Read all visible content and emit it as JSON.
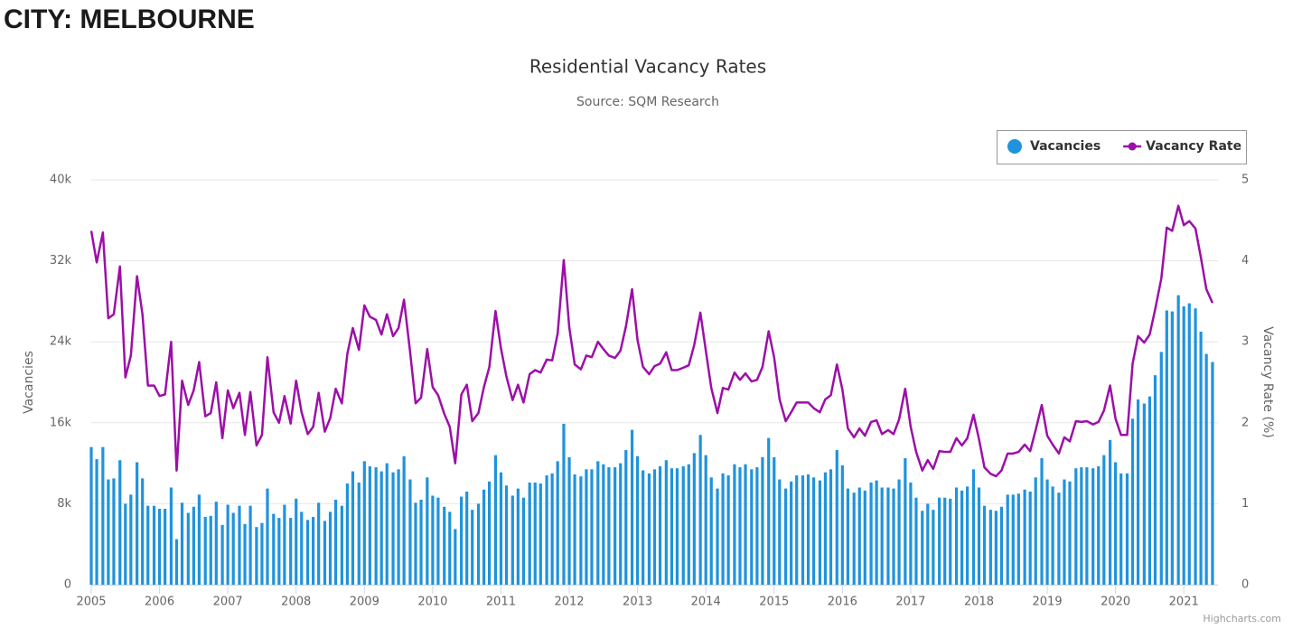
{
  "page_title": "CITY: MELBOURNE",
  "chart_data": {
    "type": "combo",
    "title": "Residential Vacancy Rates",
    "subtitle": "Source: SQM Research",
    "y_label": "Vacancies",
    "y2_label": "Vacancy Rate (%)",
    "credits": "Highcharts.com",
    "legend": "top-right",
    "grid": true,
    "xlim": [
      2005,
      2021.5
    ],
    "xticks": [
      2005,
      2006,
      2007,
      2008,
      2009,
      2010,
      2011,
      2012,
      2013,
      2014,
      2015,
      2016,
      2017,
      2018,
      2019,
      2020,
      2021
    ],
    "ylim": [
      0,
      40000
    ],
    "yticks": [
      0,
      {
        "value": 8000,
        "label": "8k"
      },
      {
        "value": 16000,
        "label": "16k"
      },
      {
        "value": 24000,
        "label": "24k"
      },
      {
        "value": 32000,
        "label": "32k"
      },
      {
        "value": 40000,
        "label": "40k"
      }
    ],
    "y2lim": [
      0,
      5
    ],
    "y2ticks": [
      0,
      1,
      2,
      3,
      4,
      5
    ],
    "x": [
      2005,
      2005.08,
      2005.17,
      2005.25,
      2005.33,
      2005.42,
      2005.5,
      2005.58,
      2005.67,
      2005.75,
      2005.83,
      2005.92,
      2006,
      2006.08,
      2006.17,
      2006.25,
      2006.33,
      2006.42,
      2006.5,
      2006.58,
      2006.67,
      2006.75,
      2006.83,
      2006.92,
      2007,
      2007.08,
      2007.17,
      2007.25,
      2007.33,
      2007.42,
      2007.5,
      2007.58,
      2007.67,
      2007.75,
      2007.83,
      2007.92,
      2008,
      2008.08,
      2008.17,
      2008.25,
      2008.33,
      2008.42,
      2008.5,
      2008.58,
      2008.67,
      2008.75,
      2008.83,
      2008.92,
      2009,
      2009.08,
      2009.17,
      2009.25,
      2009.33,
      2009.42,
      2009.5,
      2009.58,
      2009.67,
      2009.75,
      2009.83,
      2009.92,
      2010,
      2010.08,
      2010.17,
      2010.25,
      2010.33,
      2010.42,
      2010.5,
      2010.58,
      2010.67,
      2010.75,
      2010.83,
      2010.92,
      2011,
      2011.08,
      2011.17,
      2011.25,
      2011.33,
      2011.42,
      2011.5,
      2011.58,
      2011.67,
      2011.75,
      2011.83,
      2011.92,
      2012,
      2012.08,
      2012.17,
      2012.25,
      2012.33,
      2012.42,
      2012.5,
      2012.58,
      2012.67,
      2012.75,
      2012.83,
      2012.92,
      2013,
      2013.08,
      2013.17,
      2013.25,
      2013.33,
      2013.42,
      2013.5,
      2013.58,
      2013.67,
      2013.75,
      2013.83,
      2013.92,
      2014,
      2014.08,
      2014.17,
      2014.25,
      2014.33,
      2014.42,
      2014.5,
      2014.58,
      2014.67,
      2014.75,
      2014.83,
      2014.92,
      2015,
      2015.08,
      2015.17,
      2015.25,
      2015.33,
      2015.42,
      2015.5,
      2015.58,
      2015.67,
      2015.75,
      2015.83,
      2015.92,
      2016,
      2016.08,
      2016.17,
      2016.25,
      2016.33,
      2016.42,
      2016.5,
      2016.58,
      2016.67,
      2016.75,
      2016.83,
      2016.92,
      2017,
      2017.08,
      2017.17,
      2017.25,
      2017.33,
      2017.42,
      2017.5,
      2017.58,
      2017.67,
      2017.75,
      2017.83,
      2017.92,
      2018,
      2018.08,
      2018.17,
      2018.25,
      2018.33,
      2018.42,
      2018.5,
      2018.58,
      2018.67,
      2018.75,
      2018.83,
      2018.92,
      2019,
      2019.08,
      2019.17,
      2019.25,
      2019.33,
      2019.42,
      2019.5,
      2019.58,
      2019.67,
      2019.75,
      2019.83,
      2019.92,
      2020,
      2020.08,
      2020.17,
      2020.25,
      2020.33,
      2020.42,
      2020.5,
      2020.58,
      2020.67,
      2020.75,
      2020.83,
      2020.92,
      2021,
      2021.08,
      2021.17,
      2021.25,
      2021.33,
      2021.42
    ],
    "series": [
      {
        "name": "Vacancies",
        "type": "bar",
        "color": "#1f93dd",
        "values": [
          13600,
          12400,
          13600,
          10400,
          10500,
          12300,
          8000,
          8900,
          12100,
          10500,
          7800,
          7800,
          7500,
          7500,
          9600,
          4500,
          8100,
          7100,
          7700,
          8900,
          6700,
          6800,
          8200,
          5900,
          7900,
          7100,
          7800,
          6000,
          7800,
          5700,
          6100,
          9500,
          7000,
          6600,
          7900,
          6600,
          8500,
          7200,
          6400,
          6700,
          8100,
          6300,
          7200,
          8400,
          7800,
          10000,
          11200,
          10100,
          12200,
          11700,
          11600,
          11200,
          12000,
          11100,
          11400,
          12700,
          10400,
          8100,
          8400,
          10600,
          8800,
          8600,
          7700,
          7200,
          5500,
          8700,
          9200,
          7400,
          8000,
          9400,
          10200,
          12800,
          11100,
          9800,
          8800,
          9500,
          8600,
          10100,
          10100,
          10000,
          10800,
          11000,
          12200,
          15900,
          12600,
          10900,
          10700,
          11400,
          11400,
          12200,
          11900,
          11600,
          11600,
          12000,
          13300,
          15300,
          12700,
          11300,
          11000,
          11400,
          11700,
          12300,
          11500,
          11500,
          11700,
          11900,
          13000,
          14800,
          12800,
          10600,
          9500,
          11000,
          10800,
          11900,
          11600,
          11900,
          11400,
          11600,
          12600,
          14500,
          12600,
          10400,
          9500,
          10200,
          10800,
          10800,
          10900,
          10600,
          10300,
          11100,
          11400,
          13300,
          11800,
          9500,
          9100,
          9600,
          9300,
          10100,
          10300,
          9600,
          9600,
          9500,
          10400,
          12500,
          10100,
          8600,
          7300,
          8000,
          7400,
          8600,
          8600,
          8500,
          9600,
          9300,
          9700,
          11400,
          9600,
          7800,
          7400,
          7300,
          7700,
          8900,
          8900,
          9000,
          9400,
          9200,
          10600,
          12500,
          10400,
          9700,
          9100,
          10400,
          10200,
          11500,
          11600,
          11600,
          11500,
          11700,
          12800,
          14300,
          12100,
          11000,
          11000,
          16400,
          18300,
          17900,
          18600,
          20700,
          23000,
          27100,
          27000,
          28600,
          27500,
          27800,
          27300,
          25000,
          22800,
          22000
        ]
      },
      {
        "name": "Vacancy Rate",
        "type": "line",
        "axis": "y2",
        "color": "#9c0fa8",
        "values": [
          4.37,
          3.98,
          4.35,
          3.29,
          3.34,
          3.93,
          2.56,
          2.83,
          3.81,
          3.34,
          2.46,
          2.46,
          2.33,
          2.35,
          3.0,
          1.41,
          2.52,
          2.22,
          2.4,
          2.75,
          2.08,
          2.12,
          2.5,
          1.81,
          2.4,
          2.18,
          2.37,
          1.85,
          2.38,
          1.72,
          1.85,
          2.81,
          2.13,
          2.0,
          2.33,
          1.99,
          2.52,
          2.13,
          1.86,
          1.95,
          2.37,
          1.89,
          2.06,
          2.42,
          2.24,
          2.85,
          3.17,
          2.9,
          3.45,
          3.31,
          3.27,
          3.09,
          3.34,
          3.07,
          3.17,
          3.52,
          2.87,
          2.24,
          2.31,
          2.91,
          2.44,
          2.34,
          2.11,
          1.95,
          1.5,
          2.35,
          2.47,
          2.02,
          2.12,
          2.44,
          2.69,
          3.38,
          2.92,
          2.57,
          2.28,
          2.47,
          2.25,
          2.6,
          2.65,
          2.62,
          2.78,
          2.77,
          3.1,
          4.01,
          3.18,
          2.72,
          2.66,
          2.83,
          2.81,
          3.0,
          2.91,
          2.83,
          2.8,
          2.89,
          3.19,
          3.65,
          3.02,
          2.69,
          2.6,
          2.7,
          2.73,
          2.87,
          2.65,
          2.65,
          2.68,
          2.71,
          2.96,
          3.36,
          2.89,
          2.43,
          2.12,
          2.43,
          2.41,
          2.62,
          2.53,
          2.61,
          2.51,
          2.53,
          2.69,
          3.13,
          2.81,
          2.29,
          2.02,
          2.13,
          2.25,
          2.25,
          2.25,
          2.18,
          2.13,
          2.29,
          2.34,
          2.72,
          2.41,
          1.93,
          1.82,
          1.93,
          1.84,
          2.01,
          2.03,
          1.86,
          1.91,
          1.86,
          2.04,
          2.42,
          1.95,
          1.64,
          1.41,
          1.54,
          1.43,
          1.65,
          1.64,
          1.64,
          1.81,
          1.72,
          1.81,
          2.1,
          1.8,
          1.45,
          1.37,
          1.34,
          1.41,
          1.62,
          1.62,
          1.64,
          1.73,
          1.65,
          1.91,
          2.22,
          1.84,
          1.73,
          1.62,
          1.82,
          1.77,
          2.02,
          2.01,
          2.02,
          1.98,
          2.01,
          2.15,
          2.46,
          2.05,
          1.85,
          1.85,
          2.73,
          3.07,
          2.99,
          3.09,
          3.4,
          3.78,
          4.41,
          4.37,
          4.68,
          4.44,
          4.49,
          4.4,
          4.04,
          3.65,
          3.48
        ]
      }
    ]
  }
}
